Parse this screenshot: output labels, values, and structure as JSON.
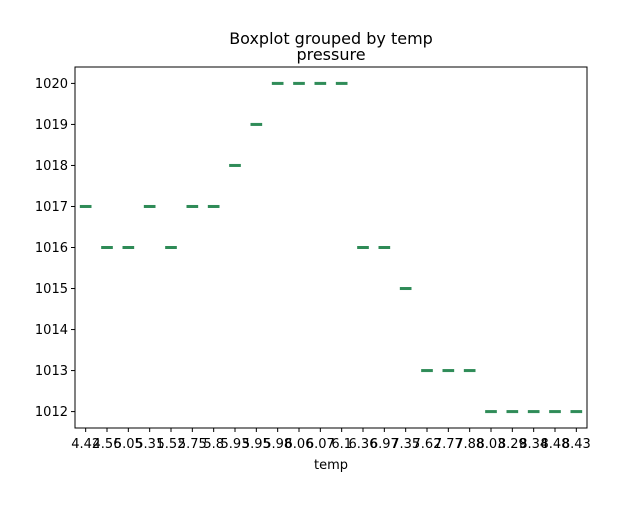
{
  "chart_data": {
    "type": "box",
    "title": "Boxplot grouped by temp",
    "subtitle": "pressure",
    "xlabel": "temp",
    "ylabel": "",
    "ylim": [
      1011.6,
      1020.4
    ],
    "yticks": [
      1012,
      1013,
      1014,
      1015,
      1016,
      1017,
      1018,
      1019,
      1020
    ],
    "categories": [
      "4.42",
      "4.56",
      "5.05",
      "5.31",
      "5.52",
      "5.75",
      "5.8",
      "5.93",
      "5.95",
      "5.98",
      "6.06",
      "6.07",
      "6.1",
      "6.36",
      "6.97",
      "7.35",
      "7.62",
      "7.77",
      "7.88",
      "8.03",
      "8.29",
      "8.34",
      "8.48",
      "8.43"
    ],
    "values": [
      1017,
      1016,
      1016,
      1017,
      1016,
      1017,
      1017,
      1018,
      1019,
      1020,
      1020,
      1020,
      1020,
      1016,
      1016,
      1015,
      1013,
      1013,
      1013,
      1012,
      1012,
      1012,
      1012,
      1012
    ],
    "box_color": "#2e8b57",
    "grid": false
  }
}
